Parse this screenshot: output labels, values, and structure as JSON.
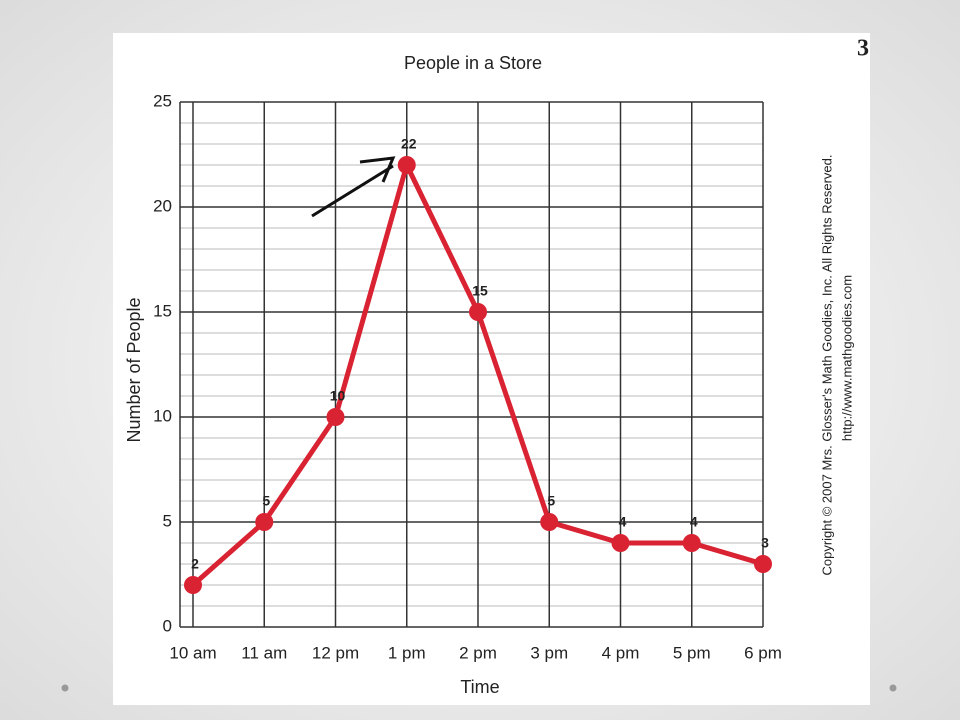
{
  "slide_number": "3",
  "chart_data": {
    "type": "line",
    "title": "People in a Store",
    "x_label": "Time",
    "y_label": "Number of People",
    "categories": [
      "10 am",
      "11 am",
      "12 pm",
      "1 pm",
      "2 pm",
      "3 pm",
      "4 pm",
      "5 pm",
      "6 pm"
    ],
    "series": [
      {
        "name": "People",
        "color": "#d92232",
        "values": [
          2,
          5,
          10,
          22,
          15,
          5,
          4,
          4,
          3
        ]
      }
    ],
    "ylim": [
      0,
      25
    ],
    "yticks": [
      0,
      5,
      10,
      15,
      20,
      25
    ],
    "grid": true,
    "minor_grid": true,
    "copyright": [
      "Copyright © 2007 Mrs. Glosser's Math Goodies, Inc. All Rights Reserved.",
      "http://www.mathgoodies.com"
    ]
  }
}
